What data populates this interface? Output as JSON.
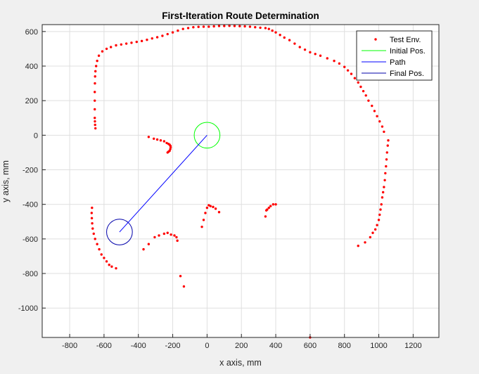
{
  "chart_data": {
    "type": "scatter",
    "title": "First-Iteration Route Determination",
    "xlabel": "x axis, mm",
    "ylabel": "y axis, mm",
    "xlim": [
      -960,
      1350
    ],
    "ylim": [
      -1170,
      640
    ],
    "xticks": [
      -800,
      -600,
      -400,
      -200,
      0,
      200,
      400,
      600,
      800,
      1000,
      1200
    ],
    "yticks": [
      600,
      400,
      200,
      0,
      -200,
      -400,
      -600,
      -800,
      -1000
    ],
    "grid": true,
    "legend_position": "top-right",
    "legend": [
      {
        "label": "Test Env.",
        "kind": "dot",
        "color": "#ff0000"
      },
      {
        "label": "Initial Pos.",
        "kind": "line",
        "color": "#00ff00"
      },
      {
        "label": "Path",
        "kind": "line",
        "color": "#0000ff"
      },
      {
        "label": "Final Pos.",
        "kind": "line",
        "color": "#0000aa"
      }
    ],
    "initial_pos": {
      "x": 0,
      "y": 0,
      "radius": 75,
      "color": "#00ff00"
    },
    "final_pos": {
      "x": -510,
      "y": -560,
      "radius": 75,
      "color": "#0000aa"
    },
    "path": {
      "x": [
        0,
        -510
      ],
      "y": [
        0,
        -560
      ],
      "color": "#0000ff"
    },
    "series": [
      {
        "name": "Test Env.",
        "color": "#ff0000",
        "x": [
          -650,
          -652,
          -653,
          -654,
          -654,
          -654,
          -654,
          -653,
          -652,
          -650,
          -646,
          -640,
          -630,
          -610,
          -585,
          -560,
          -530,
          -500,
          -470,
          -440,
          -410,
          -380,
          -350,
          -320,
          -290,
          -260,
          -230,
          -200,
          -170,
          -140,
          -110,
          -80,
          -50,
          -20,
          10,
          40,
          70,
          100,
          130,
          160,
          190,
          220,
          250,
          280,
          310,
          340,
          360,
          380,
          400,
          425,
          450,
          480,
          510,
          540,
          570,
          600,
          630,
          660,
          700,
          740,
          770,
          800,
          820,
          840,
          860,
          880,
          895,
          910,
          925,
          940,
          960,
          975,
          990,
          1005,
          1020,
          1030,
          1055,
          1052,
          1048,
          1045,
          1042,
          1038,
          1035,
          1030,
          1025,
          1020,
          1015,
          1010,
          1005,
          1000,
          990,
          980,
          965,
          950,
          920,
          880,
          -340,
          -310,
          -290,
          -270,
          -250,
          -235,
          -225,
          -218,
          -213,
          -212,
          -214,
          -218,
          -224,
          -230,
          -670,
          -672,
          -671,
          -669,
          -666,
          -660,
          -652,
          -640,
          -628,
          -615,
          -600,
          -585,
          -570,
          -555,
          -530,
          -370,
          -340,
          -305,
          -280,
          -250,
          -230,
          -210,
          -190,
          -178,
          -173,
          -155,
          -135,
          -30,
          -20,
          -10,
          0,
          10,
          20,
          35,
          50,
          70,
          340,
          350,
          360,
          370,
          385,
          400,
          345,
          600
        ],
        "y": [
          40,
          60,
          80,
          100,
          150,
          200,
          250,
          300,
          340,
          370,
          400,
          430,
          460,
          485,
          500,
          510,
          520,
          525,
          530,
          535,
          540,
          545,
          552,
          560,
          567,
          575,
          585,
          595,
          605,
          615,
          620,
          625,
          627,
          628,
          628,
          630,
          632,
          632,
          633,
          632,
          631,
          630,
          628,
          625,
          622,
          620,
          615,
          605,
          595,
          580,
          565,
          550,
          530,
          510,
          495,
          480,
          470,
          460,
          445,
          430,
          415,
          395,
          375,
          355,
          330,
          305,
          280,
          255,
          230,
          200,
          170,
          140,
          110,
          80,
          50,
          20,
          -30,
          -60,
          -100,
          -140,
          -180,
          -220,
          -260,
          -300,
          -330,
          -360,
          -400,
          -430,
          -460,
          -490,
          -520,
          -545,
          -565,
          -590,
          -620,
          -640,
          -10,
          -20,
          -25,
          -30,
          -35,
          -45,
          -50,
          -55,
          -62,
          -70,
          -80,
          -90,
          -95,
          -100,
          -420,
          -450,
          -480,
          -510,
          -540,
          -570,
          -600,
          -630,
          -660,
          -690,
          -710,
          -730,
          -750,
          -760,
          -770,
          -660,
          -630,
          -590,
          -580,
          -570,
          -565,
          -575,
          -580,
          -590,
          -610,
          -815,
          -875,
          -530,
          -490,
          -450,
          -420,
          -405,
          -410,
          -415,
          -425,
          -445,
          -470,
          -430,
          -420,
          -410,
          -400,
          -400,
          -435,
          -1170
        ]
      }
    ]
  }
}
